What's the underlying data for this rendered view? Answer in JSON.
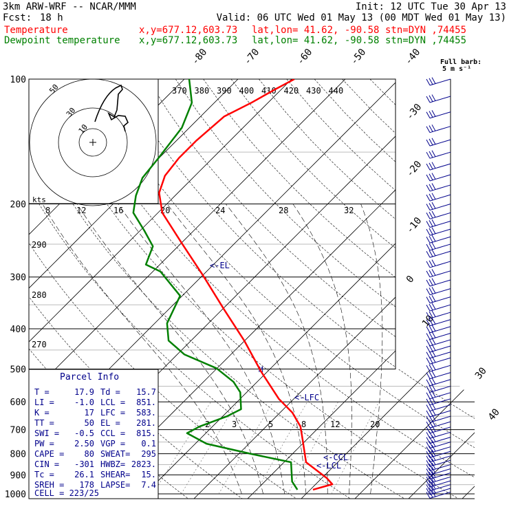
{
  "header": {
    "model": "3km ARW-WRF -- NCAR/MMM",
    "init": "Init: 12 UTC Tue 30 Apr 13",
    "fcst_label": "Fcst:",
    "fcst_value": "18 h",
    "valid": "Valid: 06 UTC Wed 01 May 13 (00 MDT Wed 01 May 13)",
    "temp_label": "Temperature",
    "dew_label": "Dewpoint temperature",
    "xy": "x,y=677.12,603.73",
    "latlon": "lat,lon= 41.62, -90.58",
    "stn": "stn=DYN ,74455"
  },
  "barb_legend": {
    "line1": "Full barb:",
    "line2": "5 m s⁻¹"
  },
  "hodograph": {
    "units": "kts",
    "rings": [
      {
        "label": "10",
        "kts": 10
      },
      {
        "label": "30",
        "kts": 30
      },
      {
        "label": "50",
        "kts": 50
      }
    ]
  },
  "parcel_info": {
    "title": "Parcel Info",
    "rows": [
      [
        "T  =",
        "17.9",
        "Td =",
        "15.7"
      ],
      [
        "LI =",
        "-1.0",
        "LCL =",
        "851."
      ],
      [
        "K  =",
        "17",
        "LFC =",
        "583."
      ],
      [
        "TT =",
        "50",
        "EL  =",
        "281."
      ],
      [
        "SWI =",
        "-0.5",
        "CCL =",
        "815."
      ],
      [
        "PW =",
        "2.50",
        "VGP =",
        "0.1"
      ],
      [
        "CAPE =",
        "80",
        "SWEAT=",
        "295"
      ],
      [
        "CIN =",
        "-301",
        "HWBZ=",
        "2823."
      ],
      [
        "Tc =",
        "26.1",
        "SHEAR=",
        "15."
      ],
      [
        "SREH =",
        "178",
        "LAPSE=",
        "7.4"
      ]
    ],
    "cell": "CELL = 223/25"
  },
  "chart_data": {
    "type": "line",
    "title": "Skew-T log-p sounding",
    "ylabel": "Pressure (hPa)",
    "pressure_ticks": [
      "100",
      "200",
      "300",
      "400",
      "500",
      "600",
      "700",
      "800",
      "900",
      "1000"
    ],
    "ylim": [
      1000,
      100
    ],
    "isotherm_labels": [
      "-80",
      "-70",
      "-60",
      "-50",
      "-40",
      "-30",
      "-20",
      "-10",
      "0",
      "10",
      "30",
      "40"
    ],
    "theta_labels_top": [
      "370",
      "380",
      "390",
      "400",
      "410",
      "420",
      "430",
      "440"
    ],
    "theta_labels_left": [
      "290",
      "280",
      "270"
    ],
    "wind_scale_labels": [
      "8",
      "12",
      "16",
      "20",
      "24",
      "28",
      "32"
    ],
    "mixing_ratio_labels": [
      "2",
      "3",
      "5",
      "8",
      "12",
      "20"
    ],
    "markers": [
      {
        "label": "<-EL",
        "p": 281
      },
      {
        "label": "<-LFC",
        "p": 583
      },
      {
        "label": "<-CCL",
        "p": 815
      },
      {
        "label": "<-LCL",
        "p": 851
      }
    ],
    "series": [
      {
        "name": "Temperature",
        "color": "#ff0000",
        "p": [
          977,
          948,
          916,
          839,
          743,
          688,
          637,
          590,
          507,
          427,
          359,
          297,
          250,
          210,
          188,
          171,
          155,
          141,
          123,
          114,
          106,
          100
        ],
        "t": [
          20.5,
          23.1,
          20.9,
          14.1,
          9.4,
          6.4,
          2.3,
          -2.8,
          -11.2,
          -20.1,
          -29.7,
          -40,
          -49.6,
          -59.2,
          -63.5,
          -65.6,
          -66.3,
          -66.3,
          -65.6,
          -63.1,
          -61.2,
          -59.5
        ]
      },
      {
        "name": "Dewpoint temperature",
        "color": "#008000",
        "p": [
          977,
          934,
          839,
          801,
          757,
          714,
          688,
          650,
          625,
          569,
          537,
          498,
          461,
          427,
          388,
          333,
          291,
          280,
          253,
          232,
          210,
          191,
          173,
          155,
          131,
          114,
          100
        ],
        "t": [
          17.6,
          15.1,
          11.3,
          2.3,
          -7.9,
          -13.5,
          -12.4,
          -9.2,
          -7.9,
          -11.2,
          -14.4,
          -20.1,
          -28.7,
          -34.2,
          -37.7,
          -40.4,
          -48.6,
          -52.6,
          -54.7,
          -59.2,
          -64.6,
          -67.3,
          -69.4,
          -70.1,
          -71.4,
          -74.2,
          -79.1
        ]
      }
    ],
    "wind_levels_hpa": [
      100,
      110,
      120,
      130,
      140,
      150,
      160,
      170,
      180,
      190,
      200,
      210,
      220,
      230,
      240,
      250,
      260,
      275,
      290,
      305,
      320,
      335,
      350,
      365,
      380,
      395,
      410,
      425,
      440,
      455,
      470,
      490,
      510,
      530,
      550,
      570,
      590,
      610,
      630,
      650,
      670,
      690,
      710,
      730,
      750,
      770,
      790,
      810,
      830,
      850,
      870,
      890,
      910,
      930,
      950,
      970,
      990
    ]
  }
}
